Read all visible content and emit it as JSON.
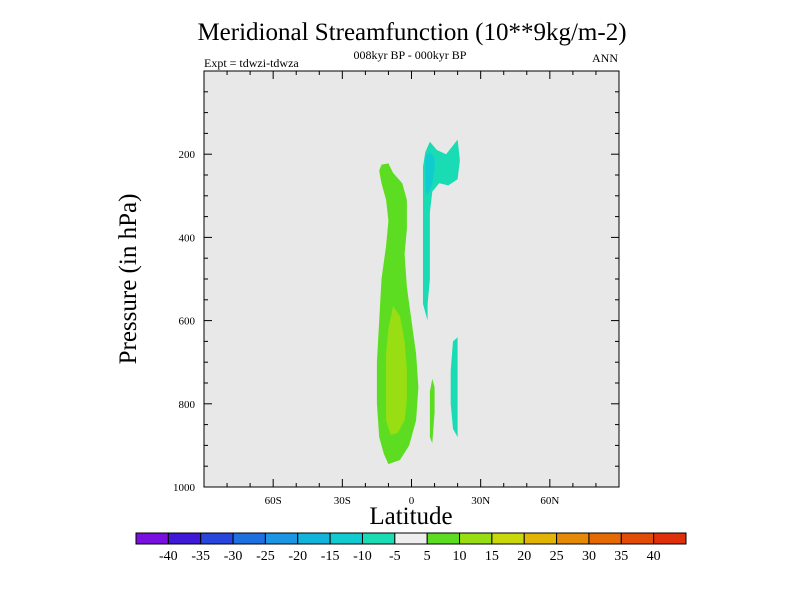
{
  "chart_data": {
    "type": "heatmap",
    "title": "Meridional Streamfunction (10**9kg/m-2)",
    "subtitle_left": "Expt = tdwzi-tdwza",
    "subtitle_center": "008kyr BP - 000kyr BP",
    "subtitle_right": "ANN",
    "xlabel": "Latitude",
    "ylabel": "Pressure (in hPa)",
    "xlim": [
      -90,
      90
    ],
    "ylim": [
      0,
      1000
    ],
    "y_reversed": true,
    "background_color": "#e8e8e8",
    "x_ticks": [
      {
        "value": -60,
        "label": "60S"
      },
      {
        "value": -30,
        "label": "30S"
      },
      {
        "value": 0,
        "label": "0"
      },
      {
        "value": 30,
        "label": "30N"
      },
      {
        "value": 60,
        "label": "60N"
      }
    ],
    "y_ticks": [
      {
        "value": 200,
        "label": "200"
      },
      {
        "value": 400,
        "label": "400"
      },
      {
        "value": 600,
        "label": "600"
      },
      {
        "value": 800,
        "label": "800"
      },
      {
        "value": 1000,
        "label": "1000"
      }
    ],
    "colorbar": {
      "levels": [
        "-40",
        "-35",
        "-30",
        "-25",
        "-20",
        "-15",
        "-10",
        "-5",
        "5",
        "10",
        "15",
        "20",
        "25",
        "30",
        "35",
        "40"
      ],
      "colors": [
        "#7a10e0",
        "#3f18d8",
        "#2846dc",
        "#1e6fe0",
        "#1c95e2",
        "#13b4dc",
        "#10ccd0",
        "#19dcb4",
        "#eeeeee",
        "#5ddd22",
        "#98de12",
        "#c8d80a",
        "#e2b406",
        "#e48a06",
        "#e46a06",
        "#e24c06",
        "#e0300a"
      ]
    },
    "regions": [
      {
        "level": "5 to 10",
        "color": "#5ddd22",
        "points": [
          [
            -13,
            225
          ],
          [
            -10,
            222
          ],
          [
            -8,
            245
          ],
          [
            -4,
            270
          ],
          [
            -2,
            310
          ],
          [
            -2,
            380
          ],
          [
            -3,
            440
          ],
          [
            -2,
            520
          ],
          [
            0,
            600
          ],
          [
            2,
            680
          ],
          [
            3,
            760
          ],
          [
            2,
            840
          ],
          [
            -1,
            900
          ],
          [
            -5,
            935
          ],
          [
            -10,
            945
          ],
          [
            -12,
            920
          ],
          [
            -14,
            880
          ],
          [
            -15,
            800
          ],
          [
            -15,
            700
          ],
          [
            -14,
            600
          ],
          [
            -13,
            500
          ],
          [
            -11,
            420
          ],
          [
            -10,
            360
          ],
          [
            -11,
            310
          ],
          [
            -13,
            270
          ],
          [
            -14,
            240
          ]
        ]
      },
      {
        "level": "10 to 15",
        "color": "#98de12",
        "points": [
          [
            -8,
            565
          ],
          [
            -5,
            590
          ],
          [
            -3,
            650
          ],
          [
            -2,
            720
          ],
          [
            -2,
            790
          ],
          [
            -3,
            840
          ],
          [
            -6,
            870
          ],
          [
            -9,
            875
          ],
          [
            -11,
            840
          ],
          [
            -11,
            760
          ],
          [
            -11,
            680
          ],
          [
            -10,
            620
          ]
        ]
      },
      {
        "level": "-10 to -5",
        "color": "#19dcb4",
        "points": [
          [
            5,
            300
          ],
          [
            5,
            230
          ],
          [
            6,
            195
          ],
          [
            8,
            170
          ],
          [
            11,
            190
          ],
          [
            15,
            200
          ],
          [
            20,
            165
          ],
          [
            21,
            215
          ],
          [
            20,
            260
          ],
          [
            16,
            275
          ],
          [
            12,
            270
          ],
          [
            9,
            290
          ],
          [
            8,
            340
          ],
          [
            8,
            420
          ],
          [
            8,
            500
          ],
          [
            7,
            560
          ],
          [
            7,
            600
          ],
          [
            5,
            560
          ],
          [
            5,
            470
          ],
          [
            5,
            380
          ]
        ]
      },
      {
        "level": "-15 to -10",
        "color": "#10ccd0",
        "points": [
          [
            6,
            205
          ],
          [
            8,
            195
          ],
          [
            10,
            210
          ],
          [
            10,
            235
          ],
          [
            9,
            270
          ],
          [
            7,
            300
          ],
          [
            6,
            290
          ],
          [
            6,
            250
          ]
        ]
      },
      {
        "level": "-10 to -5",
        "color": "#19dcb4",
        "points": [
          [
            18,
            650
          ],
          [
            20,
            640
          ],
          [
            20,
            720
          ],
          [
            20,
            810
          ],
          [
            20,
            880
          ],
          [
            18,
            860
          ],
          [
            17,
            800
          ],
          [
            17,
            720
          ]
        ]
      },
      {
        "level": "5 to 10",
        "color": "#5ddd22",
        "points": [
          [
            9,
            740
          ],
          [
            10,
            760
          ],
          [
            10,
            820
          ],
          [
            9,
            895
          ],
          [
            8,
            880
          ],
          [
            8,
            820
          ],
          [
            8,
            770
          ]
        ]
      }
    ]
  }
}
